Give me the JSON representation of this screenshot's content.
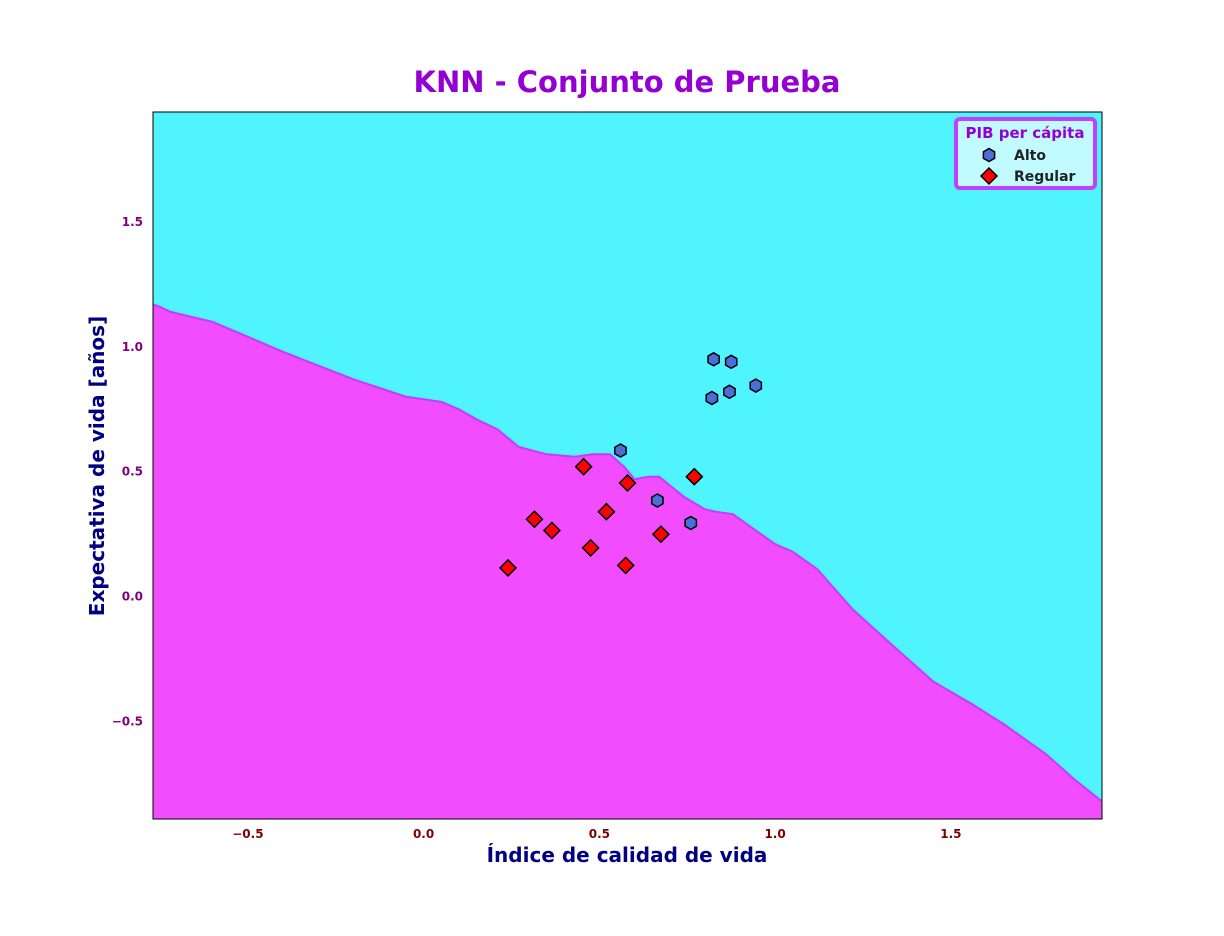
{
  "chart_data": {
    "type": "scatter",
    "title": "KNN - Conjunto de Prueba",
    "xlabel": "Índice de calidad de vida",
    "ylabel": "Expectativa de vida [años]",
    "xlim": [
      -0.77,
      1.93
    ],
    "ylim": [
      -0.89,
      1.94
    ],
    "x_ticks": [
      -0.5,
      0.0,
      0.5,
      1.0,
      1.5
    ],
    "x_tick_labels": [
      "−0.5",
      "0.0",
      "0.5",
      "1.0",
      "1.5"
    ],
    "y_ticks": [
      -0.5,
      0.0,
      0.5,
      1.0,
      1.5
    ],
    "y_tick_labels": [
      "−0.5",
      "0.0",
      "0.5",
      "1.0",
      "1.5"
    ],
    "grid": false,
    "legend": {
      "title": "PIB per cápita",
      "position": "top-right"
    },
    "regions": [
      {
        "name": "Alto",
        "color": "#4ff4ff"
      },
      {
        "name": "Regular",
        "color": "#f24cff"
      }
    ],
    "decision_boundary": [
      [
        -0.77,
        1.17
      ],
      [
        -0.75,
        1.16
      ],
      [
        -0.72,
        1.14
      ],
      [
        -0.6,
        1.1
      ],
      [
        -0.4,
        0.98
      ],
      [
        -0.2,
        0.87
      ],
      [
        -0.05,
        0.8
      ],
      [
        0.05,
        0.78
      ],
      [
        0.1,
        0.75
      ],
      [
        0.15,
        0.71
      ],
      [
        0.21,
        0.67
      ],
      [
        0.27,
        0.6
      ],
      [
        0.35,
        0.57
      ],
      [
        0.43,
        0.56
      ],
      [
        0.48,
        0.57
      ],
      [
        0.53,
        0.57
      ],
      [
        0.57,
        0.52
      ],
      [
        0.6,
        0.47
      ],
      [
        0.64,
        0.48
      ],
      [
        0.67,
        0.48
      ],
      [
        0.74,
        0.4
      ],
      [
        0.8,
        0.35
      ],
      [
        0.83,
        0.34
      ],
      [
        0.88,
        0.33
      ],
      [
        0.95,
        0.26
      ],
      [
        1.0,
        0.21
      ],
      [
        1.05,
        0.18
      ],
      [
        1.12,
        0.11
      ],
      [
        1.22,
        -0.05
      ],
      [
        1.33,
        -0.19
      ],
      [
        1.45,
        -0.34
      ],
      [
        1.56,
        -0.43
      ],
      [
        1.65,
        -0.51
      ],
      [
        1.77,
        -0.63
      ],
      [
        1.85,
        -0.73
      ],
      [
        1.93,
        -0.82
      ]
    ],
    "series": [
      {
        "name": "Alto",
        "marker": "hexagon",
        "color": "#4a6fd8",
        "points": [
          [
            0.825,
            0.95
          ],
          [
            0.875,
            0.94
          ],
          [
            0.82,
            0.795
          ],
          [
            0.87,
            0.82
          ],
          [
            0.945,
            0.845
          ],
          [
            0.56,
            0.585
          ],
          [
            0.665,
            0.385
          ],
          [
            0.76,
            0.295
          ]
        ]
      },
      {
        "name": "Regular",
        "marker": "diamond",
        "color": "#ff0000",
        "points": [
          [
            0.455,
            0.52
          ],
          [
            0.58,
            0.455
          ],
          [
            0.77,
            0.48
          ],
          [
            0.315,
            0.31
          ],
          [
            0.365,
            0.265
          ],
          [
            0.52,
            0.34
          ],
          [
            0.475,
            0.195
          ],
          [
            0.675,
            0.25
          ],
          [
            0.575,
            0.125
          ],
          [
            0.24,
            0.115
          ]
        ]
      }
    ],
    "colors": {
      "title": "#9400d3",
      "axis_label": "#000080",
      "x_tick": "#800000",
      "y_tick": "#800080",
      "legend_title": "#9400d3",
      "legend_text": "#222222",
      "legend_border": "#c040ff",
      "legend_bg": "#c2fbff",
      "boundary_line": "#c43cff"
    }
  }
}
